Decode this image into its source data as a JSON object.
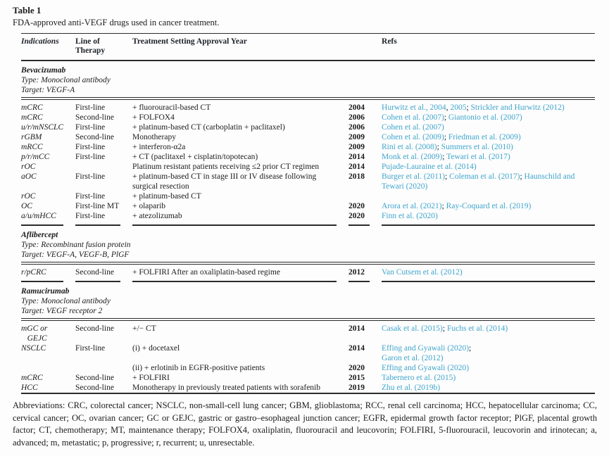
{
  "title": "Table 1",
  "caption": "FDA-approved anti-VEGF drugs used in cancer treatment.",
  "columns": [
    "Indications",
    "Line of Therapy",
    "Treatment Setting Approval Year",
    "Refs"
  ],
  "colors": {
    "link_blue": "#3fa5cd",
    "rule_dark": "#2b2b2b",
    "header_text": "#20242c"
  },
  "sections": [
    {
      "drug": "Bevacizumab",
      "type": "Type: Monoclonal antibody",
      "target": "Target: VEGF-A",
      "rows": [
        {
          "ind": "mCRC",
          "line": "First-line",
          "treatment": "+ fluorouracil-based CT",
          "year": "2004",
          "refs": [
            {
              "t": "Hurwitz et al., 2004",
              "link": true
            },
            {
              "t": ", "
            },
            {
              "t": "2005",
              "link": true
            },
            {
              "t": "; "
            },
            {
              "t": "Strickler and Hurwitz (2012)",
              "link": true
            }
          ]
        },
        {
          "ind": "mCRC",
          "line": "Second-line",
          "treatment": "+ FOLFOX4",
          "year": "2006",
          "refs": [
            {
              "t": "Cohen et al. (2007)",
              "link": true
            },
            {
              "t": "; "
            },
            {
              "t": "Giantonio et al. (2007)",
              "link": true
            }
          ]
        },
        {
          "ind": "u/r/mNSCLC",
          "line": "First-line",
          "treatment": "+ platinum-based CT (carboplatin + paclitaxel)",
          "year": "2006",
          "refs": [
            {
              "t": "Cohen et al. (2007)",
              "link": true
            }
          ]
        },
        {
          "ind": "rGBM",
          "line": "Second-line",
          "treatment": "Monotherapy",
          "year": "2009",
          "refs": [
            {
              "t": "Cohen et al. (2009)",
              "link": true
            },
            {
              "t": "; "
            },
            {
              "t": "Friedman et al. (2009)",
              "link": true
            }
          ]
        },
        {
          "ind": "mRCC",
          "line": "First-line",
          "treatment": "+ interferon-α2a",
          "year": "2009",
          "refs": [
            {
              "t": "Rini et al. (2008)",
              "link": true
            },
            {
              "t": "; "
            },
            {
              "t": "Summers et al. (2010)",
              "link": true
            }
          ]
        },
        {
          "ind": "p/r/mCC",
          "line": "First-line",
          "treatment": "+ CT (paclitaxel + cisplatin/topotecan)",
          "year": "2014",
          "refs": [
            {
              "t": "Monk et al. (2009)",
              "link": true
            },
            {
              "t": "; "
            },
            {
              "t": "Tewari et al. (2017)",
              "link": true
            }
          ]
        },
        {
          "ind": "rOC",
          "line": "",
          "treatment": "Platinum resistant patients receiving ≤2 prior CT regimen",
          "year": "2014",
          "refs": [
            {
              "t": "Pujade-Lauraine et al. (2014)",
              "link": true
            }
          ]
        },
        {
          "ind": "aOC",
          "line": "First-line",
          "treatment": "+ platinum-based CT in stage III or IV disease following surgical resection",
          "year": "2018",
          "refs": [
            {
              "t": "Burger et al. (2011)",
              "link": true
            },
            {
              "t": "; "
            },
            {
              "t": "Coleman et al. (2017)",
              "link": true
            },
            {
              "t": "; "
            },
            {
              "t": "Haunschild and Tewari (2020)",
              "link": true
            }
          ]
        },
        {
          "ind": "rOC",
          "line": "First-line",
          "treatment": "+ platinum-based CT",
          "year": "",
          "refs": []
        },
        {
          "ind": "OC",
          "line": "First-line MT",
          "treatment": "+ olaparib",
          "year": "2020",
          "refs": [
            {
              "t": "Arora et al. (2021)",
              "link": true
            },
            {
              "t": "; "
            },
            {
              "t": "Ray-Coquard et al. (2019)",
              "link": true
            }
          ]
        },
        {
          "ind": "a/u/mHCC",
          "line": "First-line",
          "treatment": "+ atezolizumab",
          "year": "2020",
          "refs": [
            {
              "t": "Finn et al. (2020)",
              "link": true
            }
          ]
        }
      ]
    },
    {
      "drug": "Aflibercept",
      "type": "Type: Recombinant fusion protein",
      "target": "Target: VEGF-A, VEGF-B, PlGF",
      "rows": [
        {
          "ind": "r/pCRC",
          "line": "Second-line",
          "treatment": "+ FOLFIRI After an oxaliplatin-based regime",
          "year": "2012",
          "refs": [
            {
              "t": "Van Cutsem et al. (2012)",
              "link": true
            }
          ]
        }
      ]
    },
    {
      "drug": "Ramucirumab",
      "type": "Type: Monoclonal antibody",
      "target": "Target: VEGF receptor 2",
      "rows": [
        {
          "ind": "mGC or\n   GEJC",
          "line": "Second-line",
          "treatment": "+/− CT",
          "year": "2014",
          "refs": [
            {
              "t": "Casak et al. (2015)",
              "link": true
            },
            {
              "t": "; "
            },
            {
              "t": "Fuchs et al. (2014)",
              "link": true
            }
          ]
        },
        {
          "ind": "NSCLC",
          "line": "First-line",
          "treatment": "(i) + docetaxel",
          "year": "2014",
          "refs": [
            {
              "t": "Effing and Gyawali (2020)",
              "link": true
            },
            {
              "t": ";"
            },
            {
              "br": true
            },
            {
              "t": "Garon et al. (2012)",
              "link": true
            }
          ]
        },
        {
          "ind": "",
          "line": "",
          "treatment": "(ii) + erlotinib in EGFR-positive patients",
          "year": "2020",
          "refs": [
            {
              "t": "Effing and Gyawali (2020)",
              "link": true
            }
          ]
        },
        {
          "ind": "mCRC",
          "line": "Second-line",
          "treatment": "+ FOLFIRI",
          "year": "2015",
          "refs": [
            {
              "t": "Tabernero et al. (2015)",
              "link": true
            }
          ]
        },
        {
          "ind": "HCC",
          "line": "Second-line",
          "treatment": "Monotherapy in previously treated patients with sorafenib",
          "year": "2019",
          "refs": [
            {
              "t": "Zhu et al. (2019b)",
              "link": true
            }
          ]
        }
      ]
    }
  ],
  "abbreviations": "Abbreviations: CRC, colorectal cancer; NSCLC, non-small-cell lung cancer; GBM, glioblastoma; RCC, renal cell carcinoma; HCC, hepatocellular carcinoma; CC, cervical cancer; OC, ovarian cancer; GC or GEJC, gastric or gastro–esophageal junction cancer; EGFR, epidermal growth factor receptor; PlGF, placental growth factor; CT, chemotherapy; MT, maintenance therapy; FOLFOX4, oxaliplatin, fluorouracil and leucovorin; FOLFIRI, 5-fluorouracil, leucovorin and irinotecan; a, advanced; m, metastatic; p, progressive; r, recurrent; u, unresectable."
}
